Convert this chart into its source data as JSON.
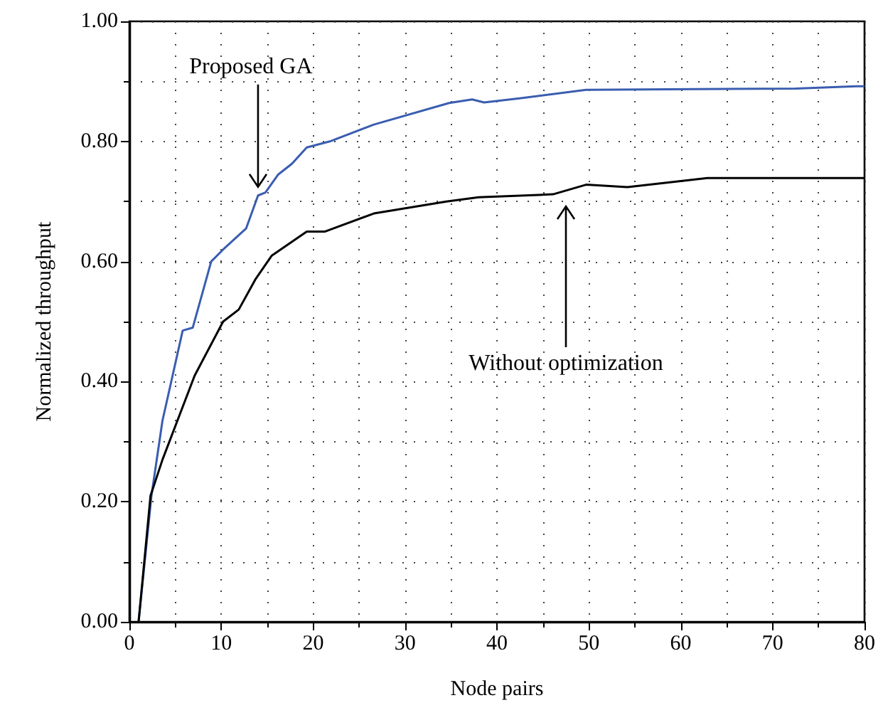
{
  "chart_data": {
    "type": "line",
    "xlabel": "Node pairs",
    "ylabel": "Normalized throughput",
    "xlim": [
      0,
      80
    ],
    "xticks": [
      0,
      10,
      20,
      30,
      40,
      50,
      60,
      70,
      80
    ],
    "ylim": [
      0,
      1
    ],
    "yticks": [
      {
        "value": 0,
        "label": "0.00"
      },
      {
        "value": 0.2,
        "label": "0.20"
      },
      {
        "value": 0.4,
        "label": "0.40"
      },
      {
        "value": 0.6,
        "label": "0.60"
      },
      {
        "value": 0.8,
        "label": "0.80"
      },
      {
        "value": 1,
        "label": "1.00"
      }
    ],
    "grid": true,
    "marker": "none",
    "line_style": "solid",
    "annotations": [
      {
        "text": "Proposed GA",
        "x": 14,
        "y": 0.71
      },
      "Without optimization"
    ],
    "series": [
      {
        "color": "#3a5db0",
        "x": [
          1.0,
          2.4,
          3.6,
          5.8,
          6.9,
          8.9,
          10.2,
          12.7,
          14.0,
          14.8,
          16.2,
          17.7,
          19.3,
          21.8,
          26.6,
          34.8,
          37.3,
          38.6,
          42.6,
          49.7,
          72.5,
          79.1,
          80
        ],
        "values": [
          0,
          0.21,
          0.335,
          0.485,
          0.49,
          0.6,
          0.62,
          0.655,
          0.71,
          0.715,
          0.745,
          0.763,
          0.79,
          0.8,
          0.828,
          0.864,
          0.87,
          0.865,
          0.872,
          0.886,
          0.888,
          0.892,
          0.892
        ]
      },
      {
        "color": "#000000",
        "x": [
          1.0,
          2.3,
          3.6,
          7.1,
          10.2,
          11.9,
          13.7,
          15.5,
          19.3,
          21.3,
          26.6,
          34.5,
          38,
          46.1,
          49.7,
          54.2,
          62.9,
          80
        ],
        "values": [
          0,
          0.21,
          0.27,
          0.41,
          0.5,
          0.52,
          0.57,
          0.61,
          0.65,
          0.65,
          0.68,
          0.7,
          0.707,
          0.712,
          0.728,
          0.724,
          0.739,
          0.739
        ]
      }
    ]
  }
}
